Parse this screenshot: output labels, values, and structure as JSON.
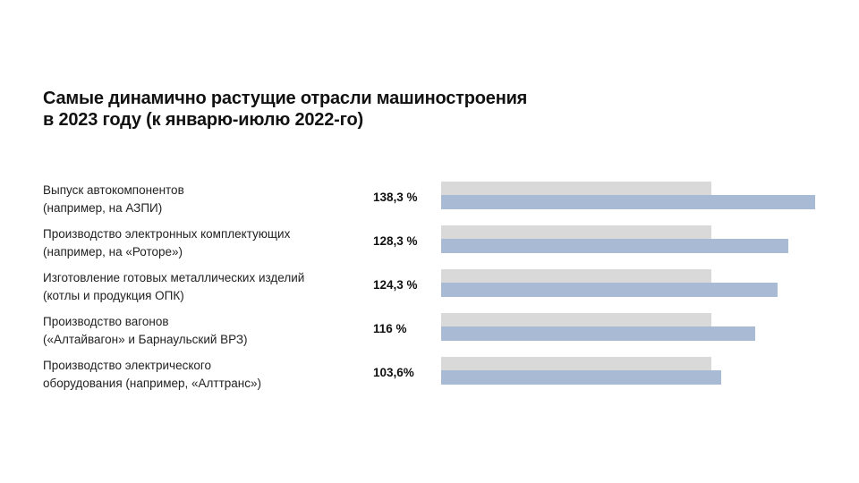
{
  "title_lines": [
    "Самые динамично растущие отрасли машиностроения",
    "в 2023 году (к январю-июлю 2022-го)"
  ],
  "colors": {
    "baseline_bar": "#d9d9d9",
    "value_bar": "#a9bbd4"
  },
  "chart_data": {
    "type": "bar",
    "orientation": "horizontal",
    "title": "Самые динамично растущие отрасли машиностроения в 2023 году (к январю-июлю 2022-го)",
    "categories": [
      [
        "Выпуск автокомпонентов",
        "(например, на АЗПИ)"
      ],
      [
        "Производство электронных комплектующих",
        "(например, на «Роторе»)"
      ],
      [
        "Изготовление готовых металлических изделий",
        "(котлы и продукция ОПК)"
      ],
      [
        "Производство вагонов",
        "(«Алтайвагон» и Барнаульский ВРЗ)"
      ],
      [
        "Производство электрического",
        "оборудования (например, «Алттранс»)"
      ]
    ],
    "values": [
      138.3,
      128.3,
      124.3,
      116,
      103.6
    ],
    "value_labels": [
      "138,3 %",
      "128,3 %",
      "124,3 %",
      "116 %",
      "103,6%"
    ],
    "baseline": 100,
    "unit": "%",
    "xlim": [
      0,
      138.3
    ],
    "grid": false,
    "legend": "none"
  }
}
